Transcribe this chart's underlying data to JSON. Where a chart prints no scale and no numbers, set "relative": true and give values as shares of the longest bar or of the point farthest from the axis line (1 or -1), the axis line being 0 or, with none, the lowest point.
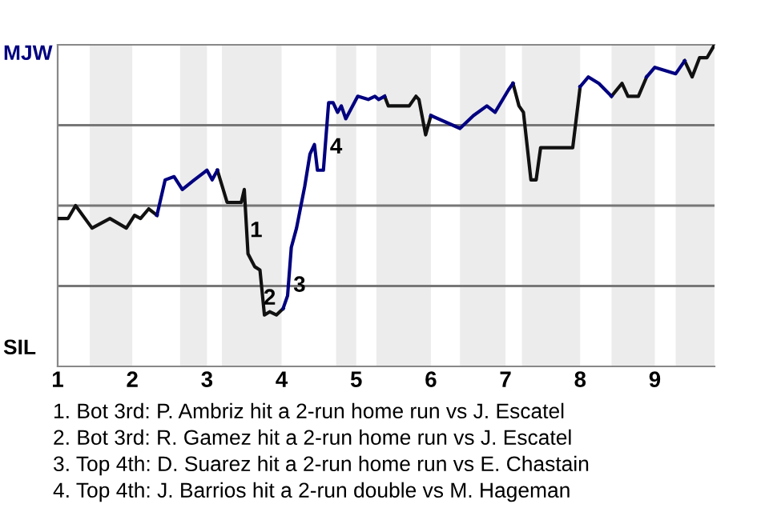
{
  "chart_data": {
    "type": "line",
    "relative": true,
    "xlim": [
      1,
      9.8
    ],
    "xticks": [
      1,
      2,
      3,
      4,
      5,
      6,
      7,
      8,
      9
    ],
    "marker": "none",
    "line_style": "solid",
    "series": [
      {
        "color": "#111111",
        "x": [
          1.0,
          1.14,
          1.24,
          1.46,
          1.7,
          1.92,
          2.03,
          2.11,
          2.22,
          2.33,
          null,
          3.14,
          3.27,
          3.46,
          3.5,
          3.55,
          3.64,
          3.71,
          3.77,
          3.84,
          3.93,
          4.02,
          null,
          5.38,
          5.43,
          5.71,
          5.8,
          5.84,
          5.93,
          6.0,
          null,
          7.1,
          7.18,
          7.24,
          7.34,
          7.41,
          7.47,
          7.9,
          8.0,
          null,
          8.42,
          8.56,
          8.64,
          8.78,
          8.89,
          null,
          9.4,
          9.5,
          9.6,
          9.7,
          9.8
        ],
        "values": [
          0.46,
          0.46,
          0.5,
          0.43,
          0.46,
          0.43,
          0.47,
          0.46,
          0.49,
          0.47,
          null,
          0.61,
          0.51,
          0.51,
          0.55,
          0.35,
          0.31,
          0.3,
          0.16,
          0.17,
          0.16,
          0.18,
          null,
          0.84,
          0.81,
          0.81,
          0.84,
          0.83,
          0.72,
          0.78,
          null,
          0.88,
          0.81,
          0.79,
          0.58,
          0.58,
          0.68,
          0.68,
          0.87,
          null,
          0.84,
          0.88,
          0.84,
          0.84,
          0.9,
          null,
          0.95,
          0.9,
          0.96,
          0.96,
          1
        ]
      },
      {
        "color": "#000080",
        "x": [
          2.33,
          2.44,
          2.56,
          2.67,
          2.83,
          3.0,
          3.07,
          3.14,
          null,
          4.02,
          4.08,
          4.13,
          4.2,
          4.31,
          4.38,
          4.44,
          4.48,
          4.56,
          4.63,
          4.69,
          4.75,
          4.8,
          4.86,
          5.02,
          5.16,
          5.25,
          5.3,
          5.38,
          null,
          6.0,
          6.39,
          6.57,
          6.75,
          6.86,
          7.04,
          7.1,
          null,
          8.0,
          8.11,
          8.25,
          8.42,
          null,
          8.89,
          9.0,
          9.28,
          9.4
        ],
        "values": [
          0.47,
          0.58,
          0.59,
          0.55,
          0.58,
          0.61,
          0.58,
          0.61,
          null,
          0.18,
          0.22,
          0.37,
          0.43,
          0.56,
          0.66,
          0.69,
          0.61,
          0.61,
          0.82,
          0.82,
          0.79,
          0.81,
          0.77,
          0.84,
          0.83,
          0.84,
          0.83,
          0.84,
          null,
          0.78,
          0.74,
          0.78,
          0.81,
          0.79,
          0.86,
          0.88,
          null,
          0.87,
          0.9,
          0.88,
          0.84,
          null,
          0.9,
          0.93,
          0.91,
          0.95
        ]
      }
    ],
    "ref_lines": [
      {
        "axis": "y",
        "value": 0.25,
        "color": "#777777"
      },
      {
        "axis": "y",
        "value": 0.5,
        "color": "#777777"
      },
      {
        "axis": "y",
        "value": 0.75,
        "color": "#777777"
      }
    ],
    "bands": [
      {
        "axis": "x",
        "from": 1.43,
        "to": 2.0,
        "color": "#ececec"
      },
      {
        "axis": "x",
        "from": 2.64,
        "to": 3.0,
        "color": "#ececec"
      },
      {
        "axis": "x",
        "from": 3.2,
        "to": 4.0,
        "color": "#ececec"
      },
      {
        "axis": "x",
        "from": 4.73,
        "to": 5.0,
        "color": "#ececec"
      },
      {
        "axis": "x",
        "from": 5.27,
        "to": 6.0,
        "color": "#ececec"
      },
      {
        "axis": "x",
        "from": 6.39,
        "to": 7.0,
        "color": "#ececec"
      },
      {
        "axis": "x",
        "from": 7.22,
        "to": 8.0,
        "color": "#ececec"
      },
      {
        "axis": "x",
        "from": 8.42,
        "to": 9.0,
        "color": "#ececec"
      },
      {
        "axis": "x",
        "from": 9.28,
        "to": 9.8,
        "color": "#ececec"
      }
    ],
    "annotations": [
      "MJW",
      "SIL",
      {
        "text": "1",
        "x": 3.66,
        "y": 0.42
      },
      {
        "text": "2",
        "x": 3.84,
        "y": 0.21
      },
      {
        "text": "3",
        "x": 4.24,
        "y": 0.25
      },
      {
        "text": "4",
        "x": 4.73,
        "y": 0.68
      },
      "1. Bot 3rd: P. Ambriz hit a 2-run home run vs J. Escatel",
      "2. Bot 3rd: R. Gamez hit a 2-run home run vs J. Escatel",
      "3. Top 4th: D. Suarez hit a 2-run home run vs E. Chastain",
      "4. Top 4th: J. Barrios hit a 2-run double vs M. Hageman"
    ]
  }
}
